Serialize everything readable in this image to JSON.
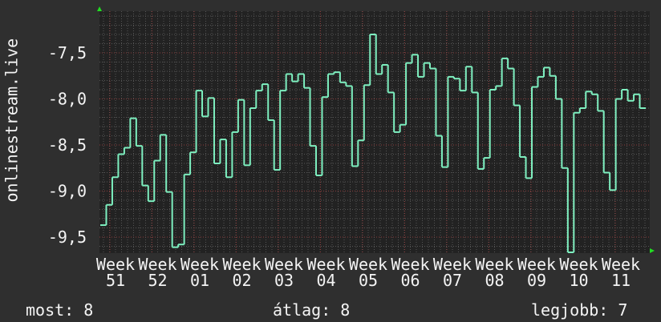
{
  "chart_data": {
    "type": "line",
    "step": true,
    "ylabel": "onlinestream.live",
    "ylim": [
      -9.67,
      -7.05
    ],
    "yticks": [
      -7.5,
      -8.0,
      -8.5,
      -9.0,
      -9.5
    ],
    "ytick_labels": [
      "-7,5",
      "-8,0",
      "-8,5",
      "-9,0",
      "-9,5"
    ],
    "xtick_labels": [
      "Week 51",
      "Week 52",
      "Week 01",
      "Week 02",
      "Week 03",
      "Week 04",
      "Week 05",
      "Week 06",
      "Week 07",
      "Week 08",
      "Week 09",
      "Week 10",
      "Week 11"
    ],
    "grid": true,
    "colors": {
      "background": "#2f2f2f",
      "plot_background": "#222222",
      "line": "#7ef0c0",
      "major_grid": "#8a3a3a",
      "minor_grid": "#555555",
      "arrow": "#22dd22"
    },
    "values": [
      -9.37,
      -9.15,
      -8.85,
      -8.6,
      -8.53,
      -8.21,
      -8.51,
      -8.94,
      -9.11,
      -8.67,
      -8.39,
      -9.01,
      -9.61,
      -9.58,
      -8.82,
      -8.58,
      -7.91,
      -8.19,
      -7.99,
      -8.7,
      -8.44,
      -8.85,
      -8.36,
      -8.01,
      -8.72,
      -8.1,
      -7.91,
      -7.84,
      -8.23,
      -8.77,
      -7.91,
      -7.73,
      -7.81,
      -7.73,
      -7.88,
      -8.51,
      -8.83,
      -7.98,
      -7.73,
      -7.71,
      -7.82,
      -7.86,
      -8.73,
      -8.45,
      -7.85,
      -7.3,
      -7.73,
      -7.63,
      -7.93,
      -8.36,
      -8.28,
      -7.61,
      -7.52,
      -7.76,
      -7.61,
      -7.67,
      -8.4,
      -8.74,
      -7.76,
      -7.78,
      -7.91,
      -7.65,
      -7.93,
      -8.76,
      -8.64,
      -7.9,
      -7.86,
      -7.56,
      -7.67,
      -8.07,
      -8.63,
      -8.86,
      -7.87,
      -7.76,
      -7.66,
      -7.75,
      -8.0,
      -8.75,
      -9.67,
      -8.15,
      -8.1,
      -7.92,
      -7.95,
      -8.13,
      -8.8,
      -8.99,
      -8.0,
      -7.9,
      -8.02,
      -7.95,
      -8.1
    ]
  },
  "legend": {
    "current": "most: 8",
    "average": "átlag: 8",
    "max": "legjobb: 7"
  }
}
